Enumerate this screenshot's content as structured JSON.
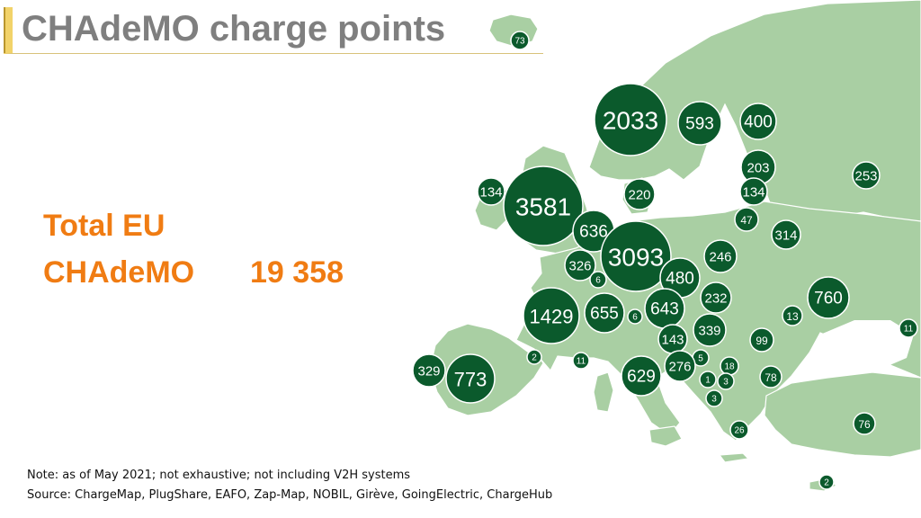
{
  "title": "CHAdeMO charge points",
  "total": {
    "line1": "Total EU",
    "label": "CHAdeMO",
    "value": "19 358"
  },
  "notes": {
    "note": "Note: as of May 2021; not exhaustive; not including V2H systems",
    "source": "Source: ChargeMap, PlugShare, EAFO, Zap-Map, NOBIL, Girève, GoingElectric, ChargeHub"
  },
  "colors": {
    "land": "#a9cfa3",
    "bubble": "#0b5a2c",
    "accent": "#f07c13",
    "title": "#7f7f7f"
  },
  "markers": [
    {
      "value": "73"
    },
    {
      "value": "2033"
    },
    {
      "value": "593"
    },
    {
      "value": "400"
    },
    {
      "value": "203"
    },
    {
      "value": "134"
    },
    {
      "value": "253"
    },
    {
      "value": "134"
    },
    {
      "value": "3581"
    },
    {
      "value": "220"
    },
    {
      "value": "636"
    },
    {
      "value": "47"
    },
    {
      "value": "314"
    },
    {
      "value": "3093"
    },
    {
      "value": "246"
    },
    {
      "value": "326"
    },
    {
      "value": "6"
    },
    {
      "value": "480"
    },
    {
      "value": "760"
    },
    {
      "value": "232"
    },
    {
      "value": "1429"
    },
    {
      "value": "655"
    },
    {
      "value": "6"
    },
    {
      "value": "643"
    },
    {
      "value": "13"
    },
    {
      "value": "339"
    },
    {
      "value": "11"
    },
    {
      "value": "143"
    },
    {
      "value": "99"
    },
    {
      "value": "2"
    },
    {
      "value": "11"
    },
    {
      "value": "5"
    },
    {
      "value": "329"
    },
    {
      "value": "773"
    },
    {
      "value": "629"
    },
    {
      "value": "276"
    },
    {
      "value": "18"
    },
    {
      "value": "78"
    },
    {
      "value": "1"
    },
    {
      "value": "3"
    },
    {
      "value": "3"
    },
    {
      "value": "76"
    },
    {
      "value": "26"
    },
    {
      "value": "2"
    }
  ]
}
